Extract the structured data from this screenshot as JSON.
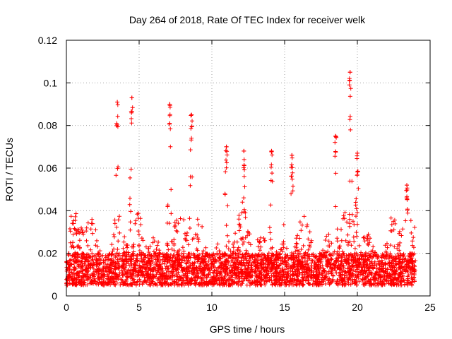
{
  "chart_data": {
    "type": "scatter",
    "title": "Day 264 of 2018, Rate Of TEC Index for receiver welk",
    "xlabel": "GPS time / hours",
    "ylabel": "ROTI / TECUs",
    "xlim": [
      0,
      25
    ],
    "ylim": [
      0,
      0.12
    ],
    "xticks": [
      0,
      5,
      10,
      15,
      20,
      25
    ],
    "yticks": [
      0,
      0.02,
      0.04,
      0.06,
      0.08,
      0.1,
      0.12
    ],
    "xtick_labels": [
      "0",
      "5",
      "10",
      "15",
      "20",
      "25"
    ],
    "ytick_labels": [
      "0",
      "0.02",
      "0.04",
      "0.06",
      "0.08",
      "0.1",
      "0.12"
    ],
    "grid": true,
    "marker": "+",
    "series_color": "#ff0000",
    "x_coverage": [
      0,
      24
    ],
    "baseline_band": [
      0.005,
      0.02
    ],
    "peaks": [
      {
        "x": 3.5,
        "y": 0.091
      },
      {
        "x": 4.5,
        "y": 0.093
      },
      {
        "x": 7.1,
        "y": 0.09
      },
      {
        "x": 8.6,
        "y": 0.085
      },
      {
        "x": 11.0,
        "y": 0.07
      },
      {
        "x": 12.2,
        "y": 0.068
      },
      {
        "x": 14.1,
        "y": 0.068
      },
      {
        "x": 15.5,
        "y": 0.066
      },
      {
        "x": 18.5,
        "y": 0.075
      },
      {
        "x": 19.5,
        "y": 0.105
      },
      {
        "x": 20.0,
        "y": 0.067
      },
      {
        "x": 23.4,
        "y": 0.052
      }
    ]
  }
}
